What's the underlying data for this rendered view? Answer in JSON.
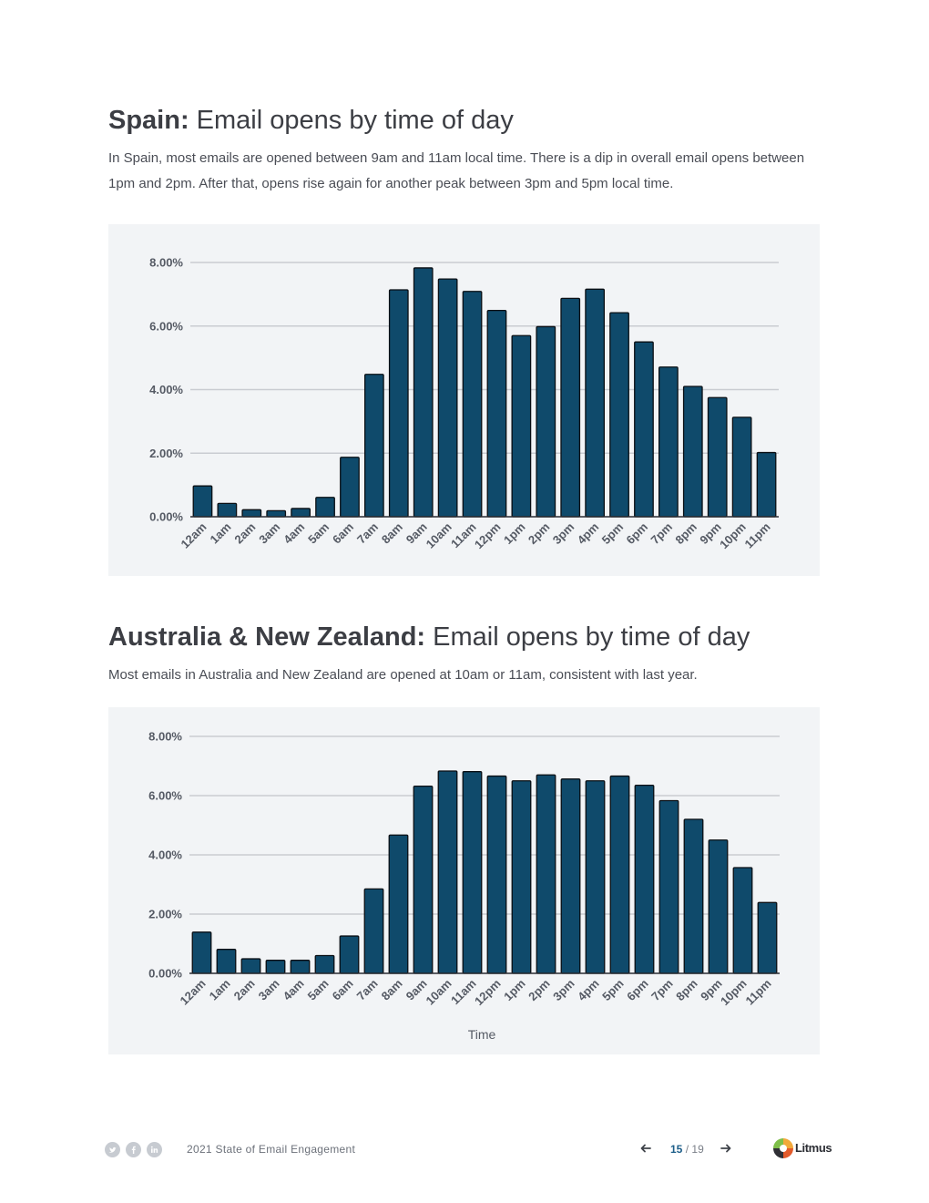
{
  "spain": {
    "title_bold": "Spain:",
    "title_rest": " Email opens by time of day",
    "description": "In Spain, most emails are opened between 9am and 11am local time. There is a dip in overall email opens between 1pm and 2pm. After that, opens rise again for another peak between 3pm and 5pm local time."
  },
  "anz": {
    "title_bold": "Australia & New Zealand:",
    "title_rest": " Email opens by time of day",
    "description": "Most emails in Australia and New Zealand are opened at 10am or 11am, consistent with last year."
  },
  "chart_data": [
    {
      "type": "bar",
      "categories": [
        "12am",
        "1am",
        "2am",
        "3am",
        "4am",
        "5am",
        "6am",
        "7am",
        "8am",
        "9am",
        "10am",
        "11am",
        "12pm",
        "1pm",
        "2pm",
        "3pm",
        "4pm",
        "5pm",
        "6pm",
        "7pm",
        "8pm",
        "9pm",
        "10pm",
        "11pm"
      ],
      "values": [
        0.97,
        0.42,
        0.22,
        0.19,
        0.26,
        0.61,
        1.87,
        4.48,
        7.14,
        7.83,
        7.48,
        7.09,
        6.49,
        5.7,
        5.98,
        6.87,
        7.16,
        6.42,
        5.5,
        4.71,
        4.1,
        3.75,
        3.13,
        2.02
      ],
      "xlabel": "",
      "ylabel": "",
      "ylim": [
        0,
        8
      ],
      "yticks": [
        "0.00%",
        "2.00%",
        "4.00%",
        "6.00%",
        "8.00%"
      ],
      "grid": true,
      "bar_color": "#0f4a6b",
      "background": "#f2f4f6"
    },
    {
      "type": "bar",
      "categories": [
        "12am",
        "1am",
        "2am",
        "3am",
        "4am",
        "5am",
        "6am",
        "7am",
        "8am",
        "9am",
        "10am",
        "11am",
        "12pm",
        "1pm",
        "2pm",
        "3pm",
        "4pm",
        "5pm",
        "6pm",
        "7pm",
        "8pm",
        "9pm",
        "10pm",
        "11pm"
      ],
      "values": [
        1.39,
        0.81,
        0.49,
        0.44,
        0.44,
        0.6,
        1.26,
        2.85,
        4.67,
        6.32,
        6.83,
        6.81,
        6.66,
        6.5,
        6.7,
        6.56,
        6.5,
        6.66,
        6.35,
        5.83,
        5.2,
        4.5,
        3.57,
        2.39
      ],
      "xlabel": "Time",
      "ylabel": "",
      "ylim": [
        0,
        8
      ],
      "yticks": [
        "0.00%",
        "2.00%",
        "4.00%",
        "6.00%",
        "8.00%"
      ],
      "grid": true,
      "bar_color": "#0f4a6b",
      "background": "#f2f4f6"
    }
  ],
  "footer": {
    "social_icons": [
      "twitter-icon",
      "facebook-icon",
      "linkedin-icon"
    ],
    "report_title": "2021 State of Email Engagement",
    "page_current": "15",
    "page_separator": "/",
    "page_total": "19",
    "brand_name": "Litmus"
  }
}
